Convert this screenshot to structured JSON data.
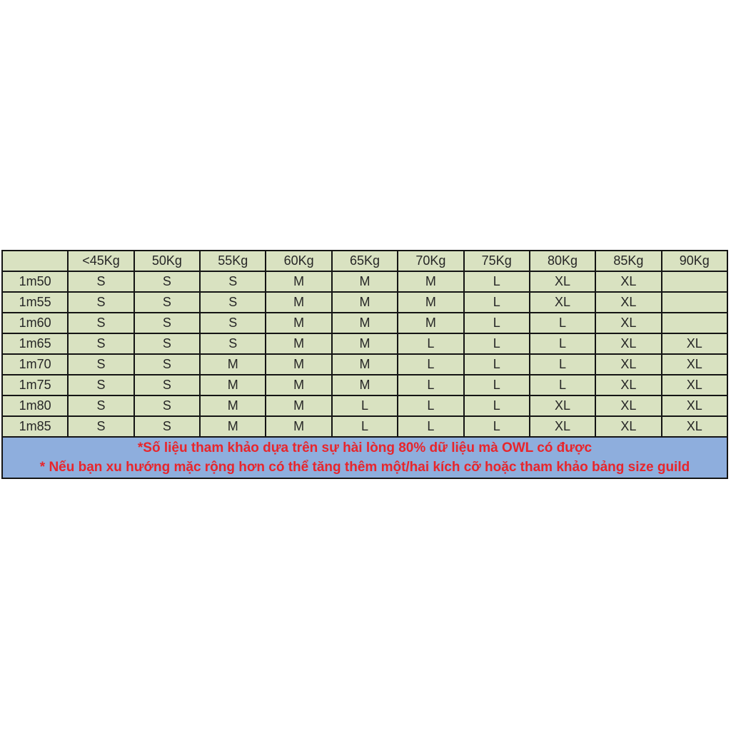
{
  "table": {
    "headers": [
      "",
      "<45Kg",
      "50Kg",
      "55Kg",
      "60Kg",
      "65Kg",
      "70Kg",
      "75Kg",
      "80Kg",
      "85Kg",
      "90Kg"
    ],
    "rows": [
      {
        "label": "1m50",
        "values": [
          "S",
          "S",
          "S",
          "M",
          "M",
          "M",
          "L",
          "XL",
          "XL",
          ""
        ]
      },
      {
        "label": "1m55",
        "values": [
          "S",
          "S",
          "S",
          "M",
          "M",
          "M",
          "L",
          "XL",
          "XL",
          ""
        ]
      },
      {
        "label": "1m60",
        "values": [
          "S",
          "S",
          "S",
          "M",
          "M",
          "M",
          "L",
          "L",
          "XL",
          ""
        ]
      },
      {
        "label": "1m65",
        "values": [
          "S",
          "S",
          "S",
          "M",
          "M",
          "L",
          "L",
          "L",
          "XL",
          "XL"
        ]
      },
      {
        "label": "1m70",
        "values": [
          "S",
          "S",
          "M",
          "M",
          "M",
          "L",
          "L",
          "L",
          "XL",
          "XL"
        ]
      },
      {
        "label": "1m75",
        "values": [
          "S",
          "S",
          "M",
          "M",
          "M",
          "L",
          "L",
          "L",
          "XL",
          "XL"
        ]
      },
      {
        "label": "1m80",
        "values": [
          "S",
          "S",
          "M",
          "M",
          "L",
          "L",
          "L",
          "XL",
          "XL",
          "XL"
        ]
      },
      {
        "label": "1m85",
        "values": [
          "S",
          "S",
          "M",
          "M",
          "L",
          "L",
          "L",
          "XL",
          "XL",
          "XL"
        ]
      }
    ],
    "footer_lines": [
      "*Số liệu tham khảo dựa trên sự hài lòng 80% dữ liệu mà OWL có được",
      "* Nếu bạn xu hướng mặc rộng hơn có thể tăng thêm một/hai kích cỡ hoặc  tham khảo bảng size guild"
    ],
    "colors": {
      "cell_bg": "#d9e2c1",
      "border": "#141414",
      "cell_text": "#262626",
      "footer_bg": "#8eaedd",
      "footer_text": "#e8252b"
    }
  }
}
